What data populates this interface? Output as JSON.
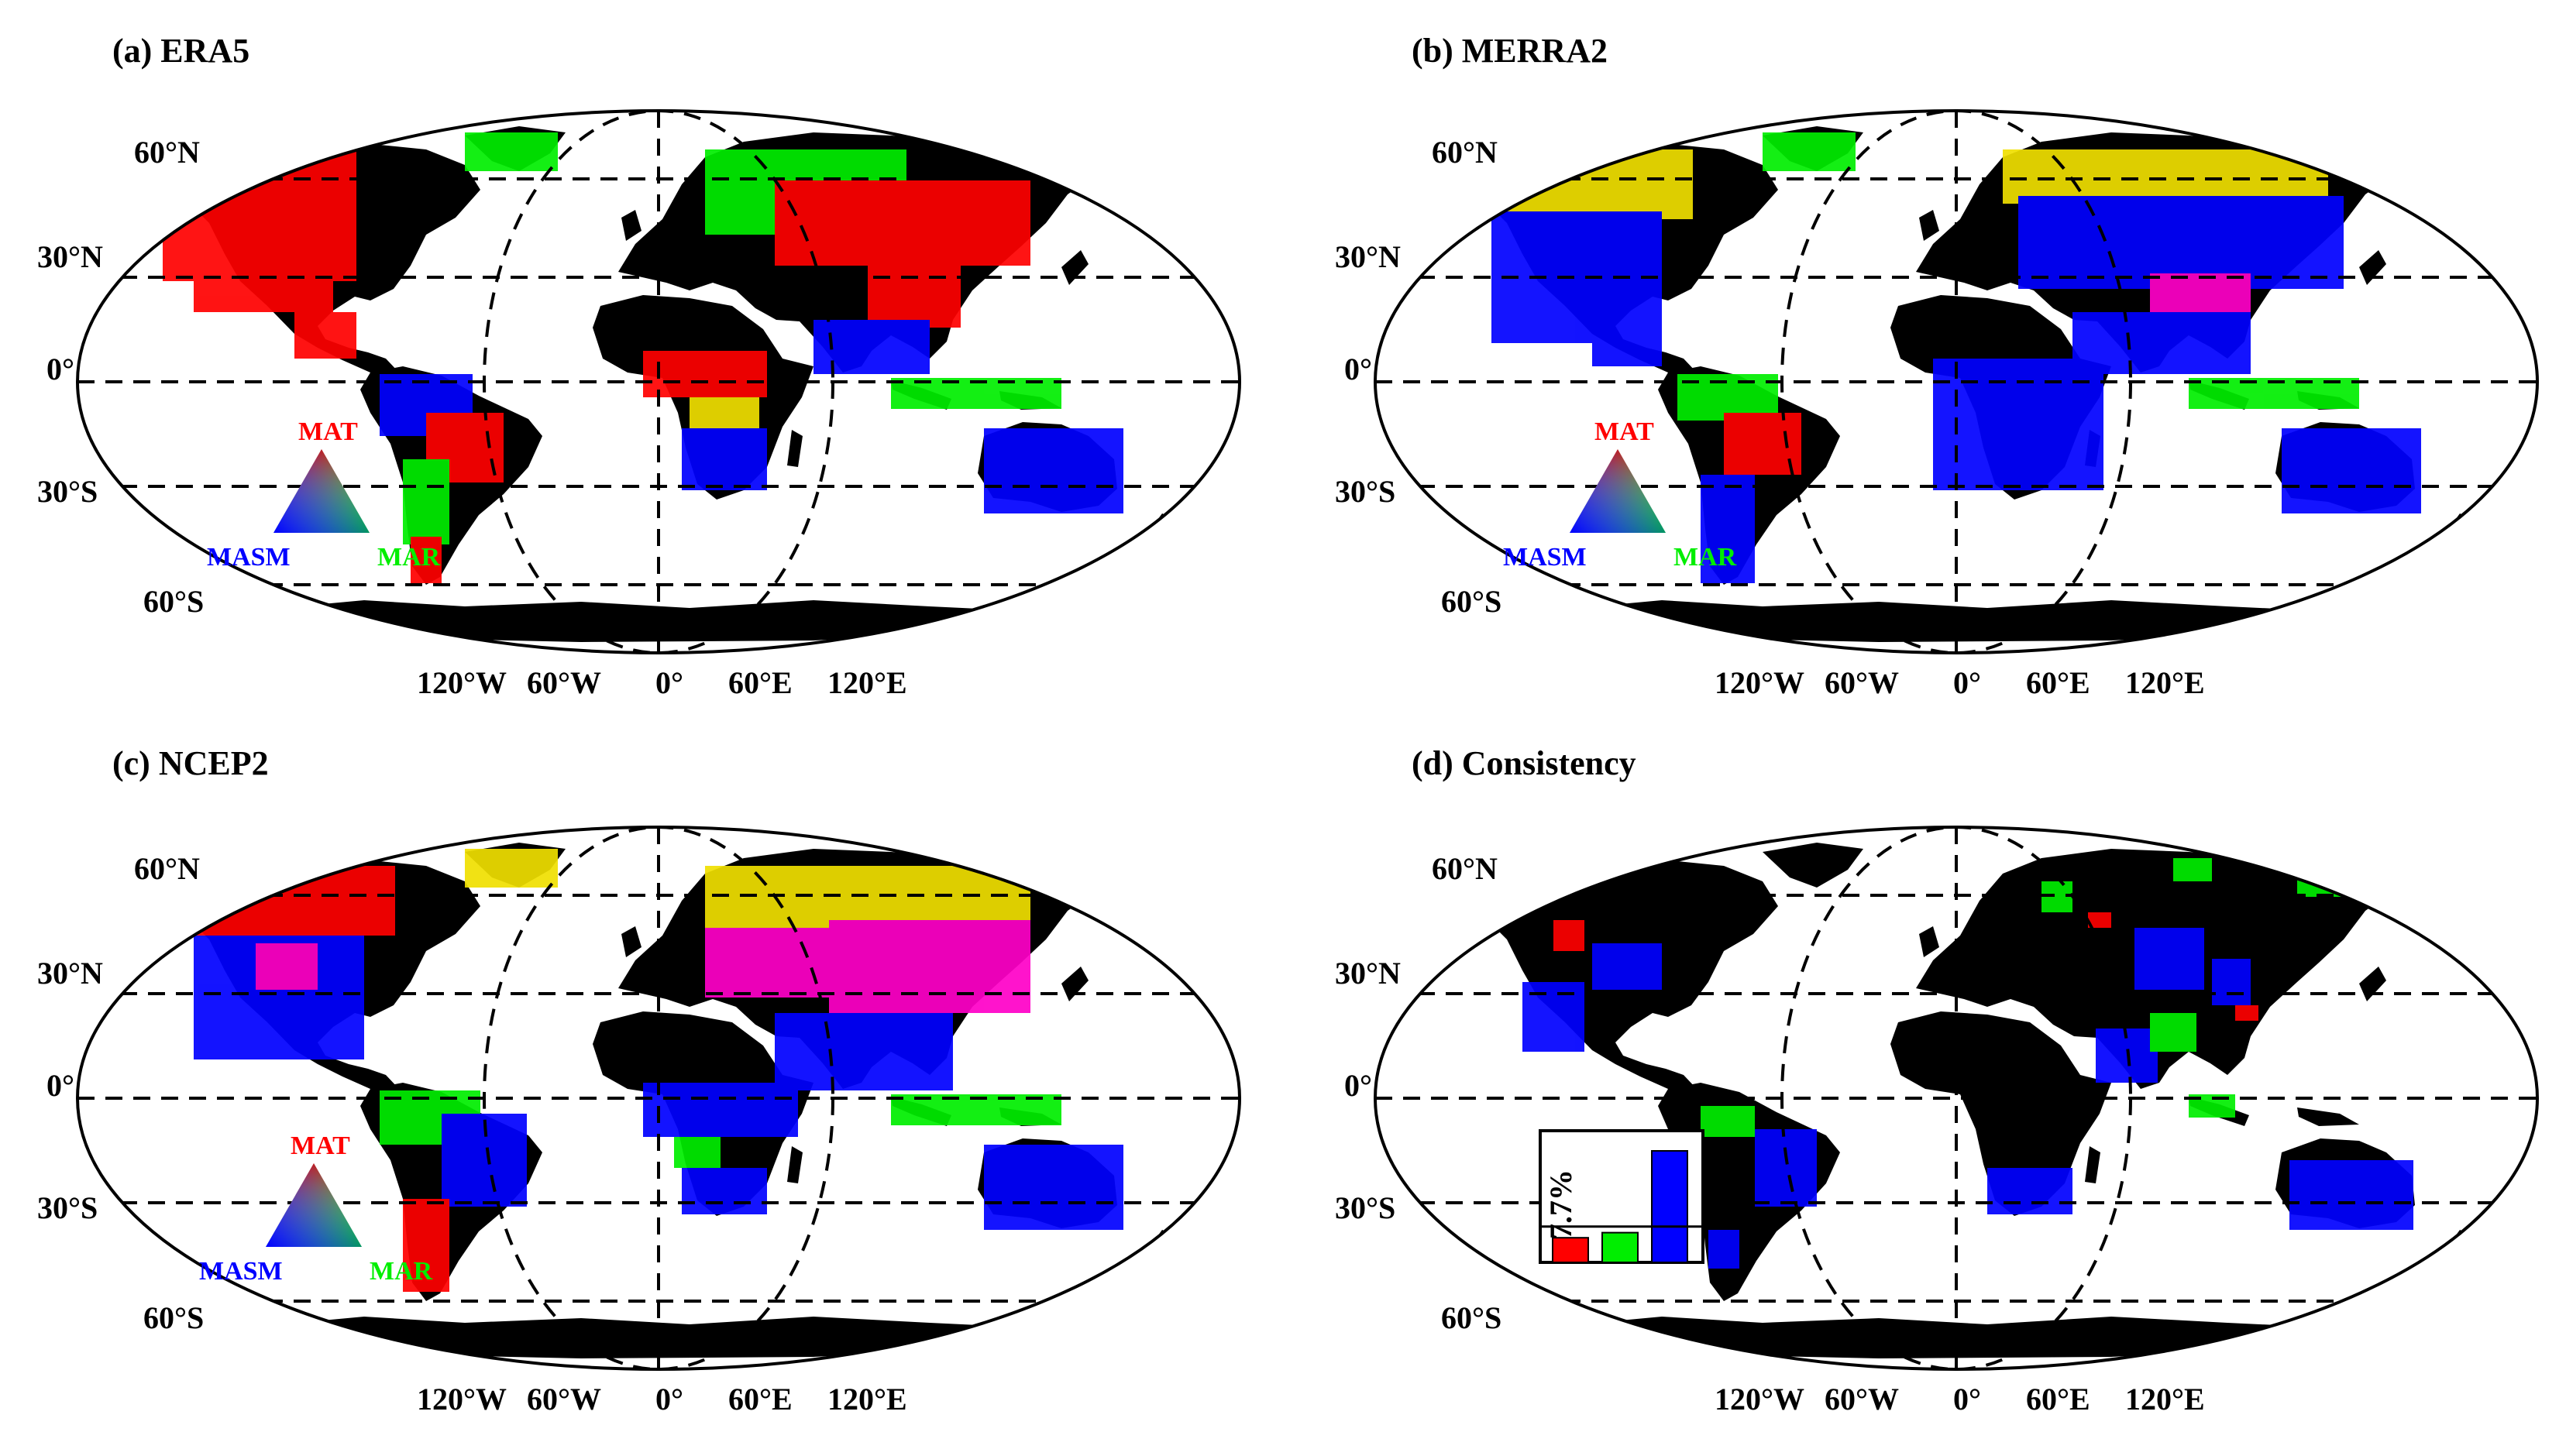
{
  "colors": {
    "mat": "#ff0000",
    "mar": "#00ee00",
    "masm": "#0000ff",
    "mixed_ry": "#f0e000",
    "mixed_rb": "#ff00c8",
    "mixed_gb": "#00c8c8"
  },
  "legend": {
    "mat": "MAT",
    "mar": "MAR",
    "masm": "MASM"
  },
  "axis_ticks": {
    "lat": [
      "60°N",
      "30°N",
      "0°",
      "30°S",
      "60°S"
    ],
    "lon": [
      "120°W",
      "60°W",
      "0°",
      "60°E",
      "120°E"
    ]
  },
  "panels": [
    {
      "id": "a",
      "title": "(a) ERA5"
    },
    {
      "id": "b",
      "title": "(b) MERRA2"
    },
    {
      "id": "c",
      "title": "(c) NCEP2"
    },
    {
      "id": "d",
      "title": "(d) Consistency"
    }
  ],
  "chart_data": {
    "type": "bar",
    "title": "",
    "xlabel": "",
    "ylabel": "",
    "categories": [
      "MAT",
      "MAR",
      "MASM"
    ],
    "values": [
      5.3,
      6.4,
      24.0
    ],
    "reference_line": {
      "value": 7.7,
      "label": "7.7%"
    },
    "ylim": [
      0,
      27
    ]
  }
}
